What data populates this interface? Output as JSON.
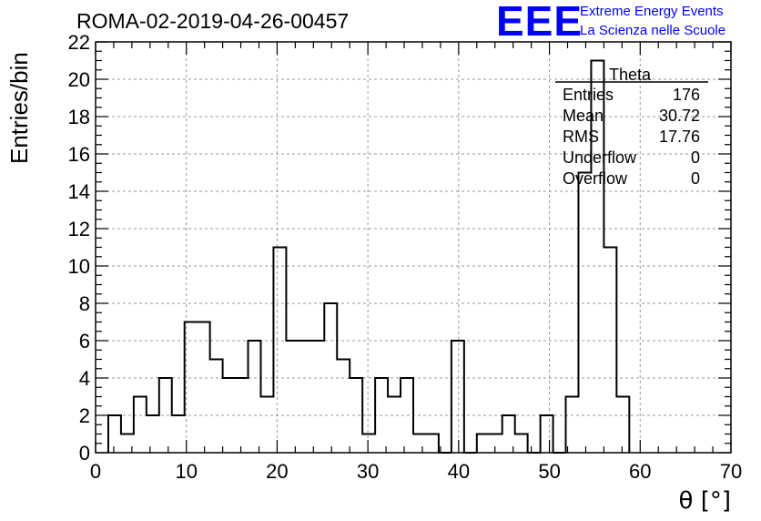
{
  "header": {
    "title": "ROMA-02-2019-04-26-00457",
    "logo_text": "EEE",
    "logo_line1": "Extreme Energy Events",
    "logo_line2": "La Scienza nelle Scuole",
    "logo_color": "#0000ff"
  },
  "stats": {
    "name": "Theta",
    "rows": [
      {
        "label": "Entries",
        "value": "176"
      },
      {
        "label": "Mean",
        "value": "30.72"
      },
      {
        "label": "RMS",
        "value": "17.76"
      },
      {
        "label": "Underflow",
        "value": "0"
      },
      {
        "label": "Overflow",
        "value": "0"
      }
    ]
  },
  "chart_data": {
    "type": "histogram",
    "title": "ROMA-02-2019-04-26-00457",
    "xlabel": "θ [°]",
    "ylabel": "Entries/bin",
    "xlim": [
      0,
      70
    ],
    "ylim": [
      0,
      22
    ],
    "bin_width": 1.4,
    "bin_edges_start": 1.4,
    "x_ticks": [
      0,
      10,
      20,
      30,
      40,
      50,
      60,
      70
    ],
    "y_ticks": [
      0,
      2,
      4,
      6,
      8,
      10,
      12,
      14,
      16,
      18,
      20,
      22
    ],
    "values": [
      2,
      1,
      3,
      2,
      4,
      2,
      7,
      7,
      5,
      4,
      4,
      6,
      3,
      11,
      6,
      6,
      6,
      8,
      5,
      4,
      1,
      4,
      3,
      4,
      1,
      1,
      0,
      6,
      0,
      1,
      1,
      2,
      1,
      0,
      2,
      0,
      3,
      15,
      21,
      11,
      3
    ],
    "grid": true,
    "legend": "top-right",
    "line_color": "#000000"
  }
}
